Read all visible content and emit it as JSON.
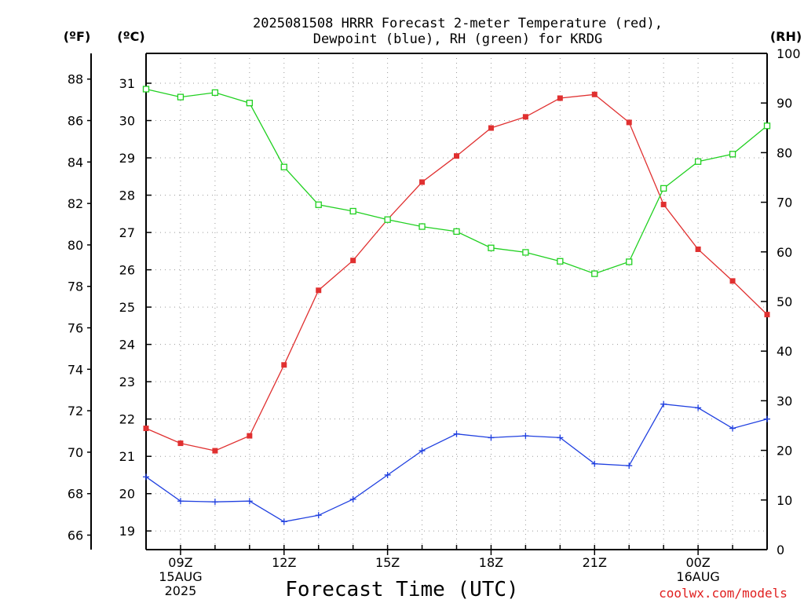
{
  "chart_data": {
    "type": "line",
    "title_line1": "2025081508 HRRR Forecast 2-meter Temperature (red),",
    "title_line2": "Dewpoint (blue), RH (green) for KRDG",
    "xlabel": "Forecast Time (UTC)",
    "credit": "coolwx.com/models",
    "units": {
      "fahrenheit": "(ºF)",
      "celsius": "(ºC)",
      "rh": "(RH)"
    },
    "x": [
      "08Z",
      "09Z",
      "10Z",
      "11Z",
      "12Z",
      "13Z",
      "14Z",
      "15Z",
      "16Z",
      "17Z",
      "18Z",
      "19Z",
      "20Z",
      "21Z",
      "22Z",
      "23Z",
      "00Z",
      "01Z",
      "02Z"
    ],
    "x_ticks": [
      {
        "index": 1,
        "lines": [
          "09Z",
          "15AUG",
          "2025"
        ]
      },
      {
        "index": 4,
        "lines": [
          "12Z"
        ]
      },
      {
        "index": 7,
        "lines": [
          "15Z"
        ]
      },
      {
        "index": 10,
        "lines": [
          "18Z"
        ]
      },
      {
        "index": 13,
        "lines": [
          "21Z"
        ]
      },
      {
        "index": 16,
        "lines": [
          "00Z",
          "16AUG"
        ]
      }
    ],
    "celsius_range": [
      18.5,
      31.8
    ],
    "celsius_ticks": [
      "19",
      "20",
      "21",
      "22",
      "23",
      "24",
      "25",
      "26",
      "27",
      "28",
      "29",
      "30",
      "31"
    ],
    "fahrenheit_ticks": [
      "66",
      "68",
      "70",
      "72",
      "74",
      "76",
      "78",
      "80",
      "82",
      "84",
      "86",
      "88"
    ],
    "rh_range": [
      0,
      100
    ],
    "rh_ticks": [
      "0",
      "10",
      "20",
      "30",
      "40",
      "50",
      "60",
      "70",
      "80",
      "90",
      "100"
    ],
    "grid": true,
    "series": [
      {
        "name": "Temperature",
        "unit": "C",
        "color": "#e03030",
        "marker": "filled-square",
        "values": [
          21.75,
          21.35,
          21.15,
          21.55,
          23.45,
          25.45,
          26.25,
          27.35,
          28.35,
          29.05,
          29.8,
          30.1,
          30.6,
          30.7,
          29.95,
          27.75,
          26.55,
          25.7,
          24.8
        ]
      },
      {
        "name": "Dewpoint",
        "unit": "C",
        "color": "#2040e0",
        "marker": "plus",
        "values": [
          20.45,
          19.8,
          19.78,
          19.8,
          19.25,
          19.42,
          19.85,
          20.5,
          21.15,
          21.6,
          21.5,
          21.55,
          21.5,
          20.8,
          20.75,
          22.4,
          22.3,
          21.75,
          22.0
        ]
      },
      {
        "name": "RH",
        "unit": "%",
        "color": "#20d020",
        "marker": "open-square",
        "values": [
          92.8,
          91.2,
          92.1,
          90.0,
          77.1,
          69.5,
          68.2,
          66.5,
          65.1,
          64.1,
          60.8,
          59.9,
          58.1,
          55.6,
          58.0,
          72.8,
          78.2,
          79.7,
          85.4
        ]
      }
    ]
  }
}
